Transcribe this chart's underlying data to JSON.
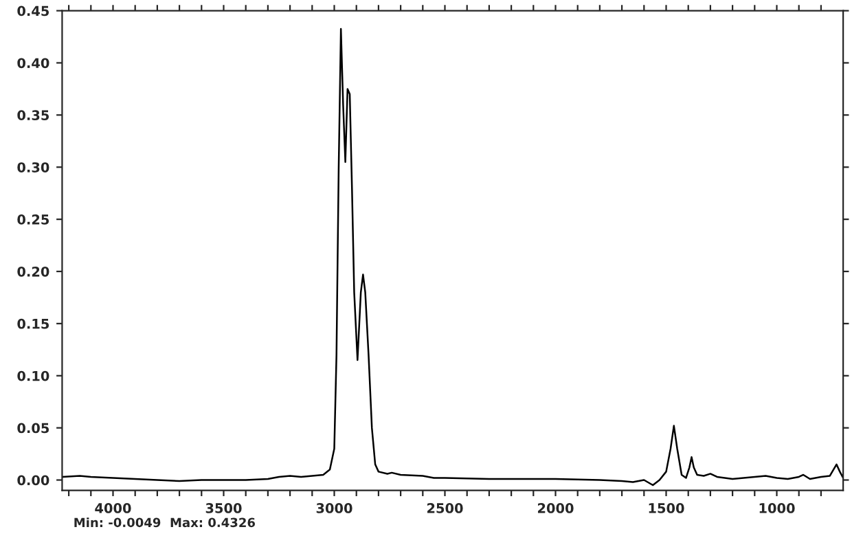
{
  "chart_data": {
    "type": "line",
    "annotations": [
      "Min: -0.0049  Max: 0.4326"
    ],
    "xlim": [
      4230,
      700
    ],
    "ylim": [
      -0.01,
      0.45
    ],
    "xticks": [
      {
        "value": 4200,
        "label": null
      },
      {
        "value": 4100,
        "label": null
      },
      4000,
      {
        "value": 3900,
        "label": null
      },
      {
        "value": 3800,
        "label": null
      },
      {
        "value": 3700,
        "label": null
      },
      {
        "value": 3600,
        "label": null
      },
      3500,
      {
        "value": 3400,
        "label": null
      },
      {
        "value": 3300,
        "label": null
      },
      {
        "value": 3200,
        "label": null
      },
      {
        "value": 3100,
        "label": null
      },
      3000,
      {
        "value": 2900,
        "label": null
      },
      {
        "value": 2800,
        "label": null
      },
      {
        "value": 2700,
        "label": null
      },
      {
        "value": 2600,
        "label": null
      },
      2500,
      {
        "value": 2400,
        "label": null
      },
      {
        "value": 2300,
        "label": null
      },
      {
        "value": 2200,
        "label": null
      },
      {
        "value": 2100,
        "label": null
      },
      2000,
      {
        "value": 1900,
        "label": null
      },
      {
        "value": 1800,
        "label": null
      },
      {
        "value": 1700,
        "label": null
      },
      {
        "value": 1600,
        "label": null
      },
      1500,
      {
        "value": 1400,
        "label": null
      },
      {
        "value": 1300,
        "label": null
      },
      {
        "value": 1200,
        "label": null
      },
      {
        "value": 1100,
        "label": null
      },
      1000,
      {
        "value": 900,
        "label": null
      },
      {
        "value": 800,
        "label": null
      }
    ],
    "yticks": [
      {
        "value": 0,
        "label": "0.00"
      },
      {
        "value": 0.05,
        "label": "0.05"
      },
      {
        "value": 0.1,
        "label": "0.10"
      },
      {
        "value": 0.15,
        "label": "0.15"
      },
      {
        "value": 0.2,
        "label": "0.20"
      },
      {
        "value": 0.25,
        "label": "0.25"
      },
      {
        "value": 0.3,
        "label": "0.30"
      },
      {
        "value": 0.35,
        "label": "0.35"
      },
      {
        "value": 0.4,
        "label": "0.40"
      },
      {
        "value": 0.45,
        "label": "0.45"
      }
    ],
    "grid": false,
    "legend": false,
    "series": [
      {
        "color": "#000000",
        "x": [
          4230,
          4150,
          4100,
          4000,
          3900,
          3800,
          3700,
          3600,
          3500,
          3400,
          3300,
          3250,
          3200,
          3150,
          3100,
          3050,
          3020,
          3000,
          2990,
          2980,
          2970,
          2960,
          2950,
          2940,
          2930,
          2920,
          2910,
          2895,
          2880,
          2870,
          2860,
          2845,
          2830,
          2815,
          2800,
          2760,
          2740,
          2700,
          2600,
          2550,
          2500,
          2300,
          2100,
          2000,
          1800,
          1700,
          1650,
          1600,
          1560,
          1530,
          1500,
          1480,
          1465,
          1450,
          1430,
          1410,
          1395,
          1385,
          1375,
          1360,
          1330,
          1300,
          1270,
          1200,
          1100,
          1050,
          1000,
          950,
          900,
          880,
          850,
          800,
          760,
          730,
          715,
          700
        ],
        "values": [
          0.003,
          0.004,
          0.003,
          0.002,
          0.001,
          0.0,
          -0.001,
          0.0,
          0.0,
          0.0,
          0.001,
          0.003,
          0.004,
          0.003,
          0.004,
          0.005,
          0.01,
          0.03,
          0.12,
          0.3,
          0.4326,
          0.36,
          0.305,
          0.375,
          0.37,
          0.28,
          0.18,
          0.115,
          0.18,
          0.197,
          0.18,
          0.12,
          0.05,
          0.015,
          0.008,
          0.006,
          0.007,
          0.005,
          0.004,
          0.002,
          0.002,
          0.001,
          0.001,
          0.001,
          0.0,
          -0.001,
          -0.002,
          0.0,
          -0.0049,
          0.0,
          0.008,
          0.03,
          0.052,
          0.03,
          0.005,
          0.002,
          0.012,
          0.022,
          0.012,
          0.005,
          0.004,
          0.006,
          0.003,
          0.001,
          0.003,
          0.004,
          0.002,
          0.001,
          0.003,
          0.005,
          0.001,
          0.003,
          0.004,
          0.015,
          0.008,
          0.002
        ]
      }
    ]
  }
}
